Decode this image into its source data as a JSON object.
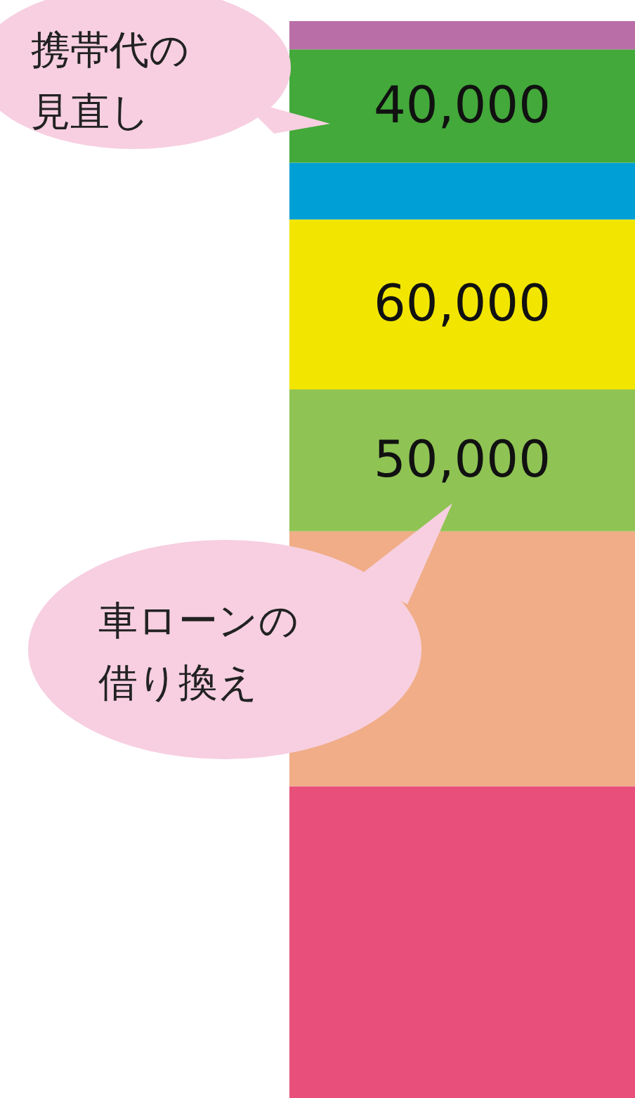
{
  "chart_data": {
    "type": "bar",
    "stacked": true,
    "categories": [
      null
    ],
    "annotations": [
      "携帯代の見直し",
      "車ローンの借り換え"
    ],
    "series": [
      {
        "color": "#e8507b",
        "values": [
          110000
        ],
        "value_labels": [
          null
        ]
      },
      {
        "color": "#f0ad87",
        "values": [
          90000
        ],
        "value_labels": [
          null
        ]
      },
      {
        "color": "#8fc454",
        "values": [
          50000
        ],
        "value_labels": [
          "50,000"
        ]
      },
      {
        "color": "#f2e600",
        "values": [
          60000
        ],
        "value_labels": [
          "60,000"
        ]
      },
      {
        "color": "#009fd6",
        "values": [
          20000
        ],
        "value_labels": [
          null
        ]
      },
      {
        "color": "#43a93a",
        "values": [
          40000
        ],
        "value_labels": [
          "40,000"
        ]
      },
      {
        "color": "#b96ea8",
        "values": [
          10000
        ],
        "value_labels": [
          null
        ]
      }
    ]
  }
}
